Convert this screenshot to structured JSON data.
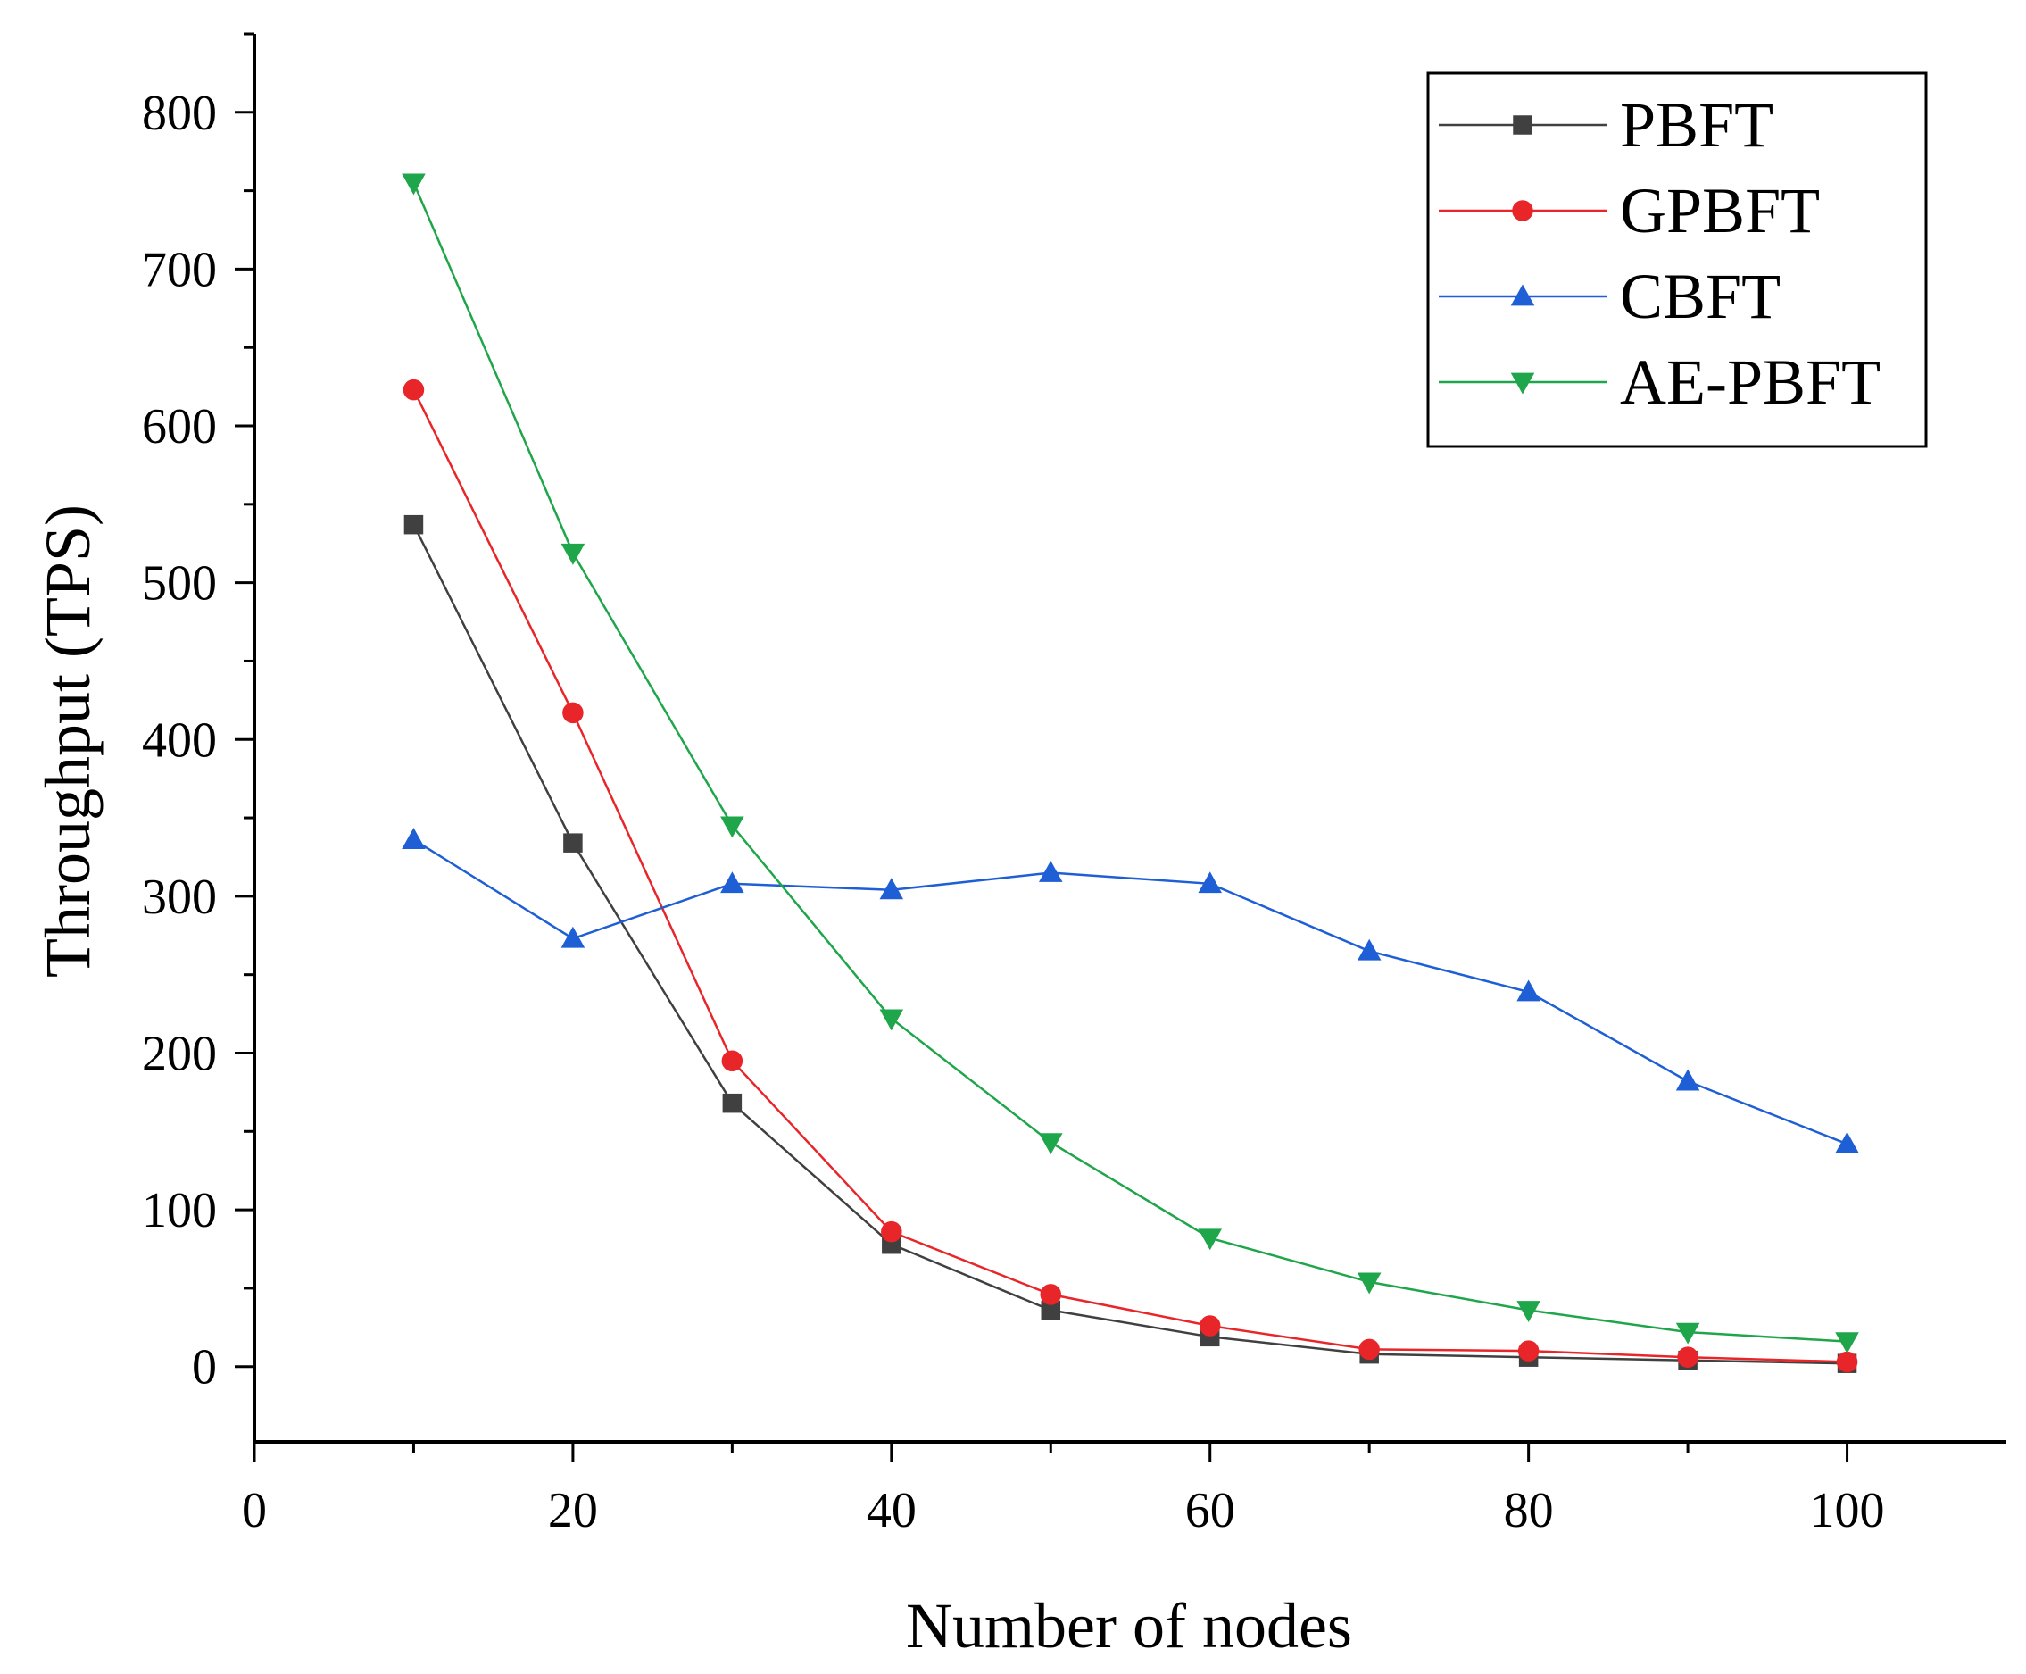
{
  "chart_data": {
    "type": "line",
    "title": "",
    "xlabel": "Number of nodes",
    "ylabel": "Throughput (TPS)",
    "xlim": [
      0,
      110
    ],
    "ylim": [
      -48,
      850
    ],
    "xticks": [
      0,
      20,
      40,
      60,
      80,
      100
    ],
    "yticks": [
      0,
      100,
      200,
      300,
      400,
      500,
      600,
      700,
      800
    ],
    "legend_position": "top-right",
    "x": [
      10,
      20,
      30,
      40,
      50,
      60,
      70,
      80,
      90,
      100
    ],
    "series": [
      {
        "name": "PBFT",
        "color": "#404040",
        "marker": "square",
        "values": [
          537,
          334,
          168,
          78,
          36,
          19,
          8,
          6,
          4,
          2
        ]
      },
      {
        "name": "GPBFT",
        "color": "#e8262a",
        "marker": "circle",
        "values": [
          623,
          417,
          195,
          86,
          46,
          26,
          11,
          10,
          6,
          3
        ]
      },
      {
        "name": "CBFT",
        "color": "#1f5fd6",
        "marker": "triangle-up",
        "values": [
          336,
          273,
          308,
          304,
          315,
          308,
          265,
          239,
          182,
          142
        ]
      },
      {
        "name": "AE-PBFT",
        "color": "#1fa64a",
        "marker": "triangle-down",
        "values": [
          755,
          519,
          345,
          222,
          143,
          82,
          54,
          36,
          22,
          16
        ]
      }
    ]
  }
}
